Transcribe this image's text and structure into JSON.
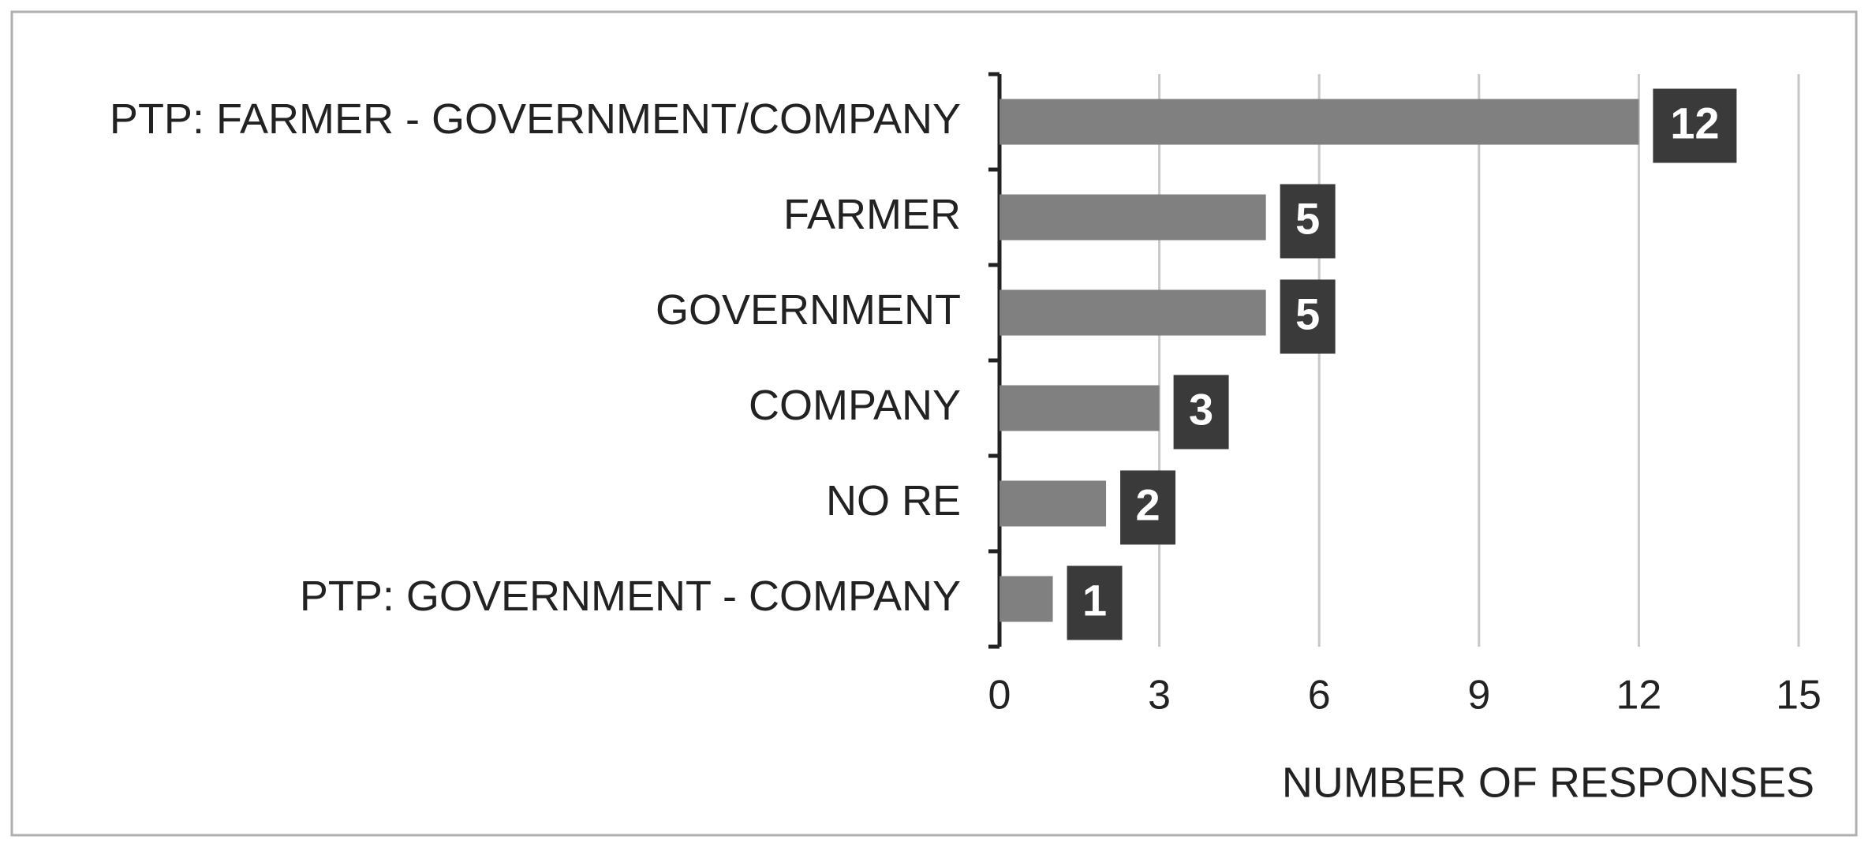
{
  "chart_data": {
    "type": "bar",
    "orientation": "horizontal",
    "x_label": "NUMBER OF RESPONSES",
    "categories": [
      "PTP: FARMER - GOVERNMENT/COMPANY",
      "FARMER",
      "GOVERNMENT",
      "COMPANY",
      "NO RE",
      "PTP: GOVERNMENT - COMPANY"
    ],
    "values": [
      12,
      5,
      5,
      3,
      2,
      1
    ],
    "color": "#808080",
    "label_color": "#3a3a3a",
    "xlim": [
      0,
      15
    ],
    "xticks": [
      0,
      3,
      6,
      9,
      12,
      15
    ],
    "grid": true
  }
}
